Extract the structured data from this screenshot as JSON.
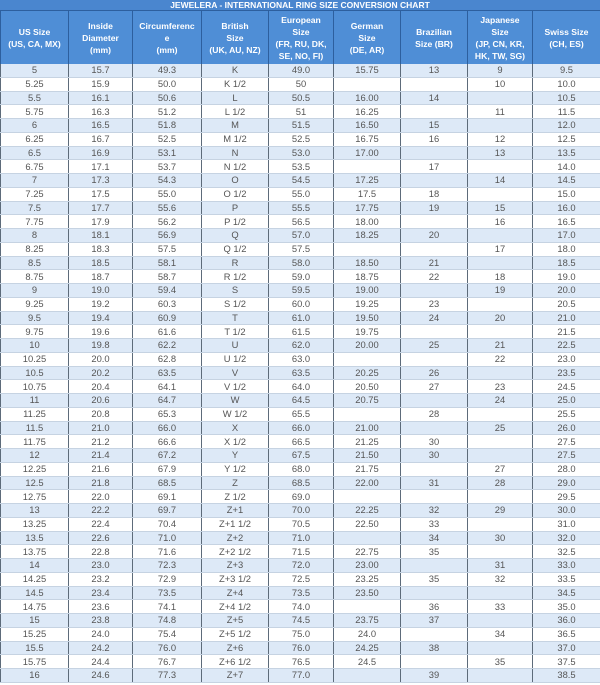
{
  "title": "JEWELERA - INTERNATIONAL RING SIZE CONVERSION CHART",
  "colors": {
    "header": "#4f8ed6",
    "row_alt": "#dde9f7",
    "text": "#555555"
  },
  "columns": [
    "US Size\n(US, CA, MX)",
    "Inside\nDiameter\n(mm)",
    "Circumferenc\ne\n(mm)",
    "British\nSize\n(UK, AU, NZ)",
    "European\nSize\n(FR, RU, DK,\nSE, NO, FI)",
    "German\nSize\n(DE, AR)",
    "Brazilian\nSize (BR)",
    "Japanese\nSize\n(JP, CN, KR,\nHK, TW, SG)",
    "Swiss Size\n(CH, ES)"
  ],
  "rows": [
    [
      "5",
      "15.7",
      "49.3",
      "K",
      "49.0",
      "15.75",
      "13",
      "9",
      "9.5"
    ],
    [
      "5.25",
      "15.9",
      "50.0",
      "K 1/2",
      "50",
      "",
      "",
      "10",
      "10.0"
    ],
    [
      "5.5",
      "16.1",
      "50.6",
      "L",
      "50.5",
      "16.00",
      "14",
      "",
      "10.5"
    ],
    [
      "5.75",
      "16.3",
      "51.2",
      "L 1/2",
      "51",
      "16.25",
      "",
      "11",
      "11.5"
    ],
    [
      "6",
      "16.5",
      "51.8",
      "M",
      "51.5",
      "16.50",
      "15",
      "",
      "12.0"
    ],
    [
      "6.25",
      "16.7",
      "52.5",
      "M 1/2",
      "52.5",
      "16.75",
      "16",
      "12",
      "12.5"
    ],
    [
      "6.5",
      "16.9",
      "53.1",
      "N",
      "53.0",
      "17.00",
      "",
      "13",
      "13.5"
    ],
    [
      "6.75",
      "17.1",
      "53.7",
      "N 1/2",
      "53.5",
      "",
      "17",
      "",
      "14.0"
    ],
    [
      "7",
      "17.3",
      "54.3",
      "O",
      "54.5",
      "17.25",
      "",
      "14",
      "14.5"
    ],
    [
      "7.25",
      "17.5",
      "55.0",
      "O 1/2",
      "55.0",
      "17.5",
      "18",
      "",
      "15.0"
    ],
    [
      "7.5",
      "17.7",
      "55.6",
      "P",
      "55.5",
      "17.75",
      "19",
      "15",
      "16.0"
    ],
    [
      "7.75",
      "17.9",
      "56.2",
      "P 1/2",
      "56.5",
      "18.00",
      "",
      "16",
      "16.5"
    ],
    [
      "8",
      "18.1",
      "56.9",
      "Q",
      "57.0",
      "18.25",
      "20",
      "",
      "17.0"
    ],
    [
      "8.25",
      "18.3",
      "57.5",
      "Q 1/2",
      "57.5",
      "",
      "",
      "17",
      "18.0"
    ],
    [
      "8.5",
      "18.5",
      "58.1",
      "R",
      "58.0",
      "18.50",
      "21",
      "",
      "18.5"
    ],
    [
      "8.75",
      "18.7",
      "58.7",
      "R 1/2",
      "59.0",
      "18.75",
      "22",
      "18",
      "19.0"
    ],
    [
      "9",
      "19.0",
      "59.4",
      "S",
      "59.5",
      "19.00",
      "",
      "19",
      "20.0"
    ],
    [
      "9.25",
      "19.2",
      "60.3",
      "S 1/2",
      "60.0",
      "19.25",
      "23",
      "",
      "20.5"
    ],
    [
      "9.5",
      "19.4",
      "60.9",
      "T",
      "61.0",
      "19.50",
      "24",
      "20",
      "21.0"
    ],
    [
      "9.75",
      "19.6",
      "61.6",
      "T 1/2",
      "61.5",
      "19.75",
      "",
      "",
      "21.5"
    ],
    [
      "10",
      "19.8",
      "62.2",
      "U",
      "62.0",
      "20.00",
      "25",
      "21",
      "22.5"
    ],
    [
      "10.25",
      "20.0",
      "62.8",
      "U 1/2",
      "63.0",
      "",
      "",
      "22",
      "23.0"
    ],
    [
      "10.5",
      "20.2",
      "63.5",
      "V",
      "63.5",
      "20.25",
      "26",
      "",
      "23.5"
    ],
    [
      "10.75",
      "20.4",
      "64.1",
      "V 1/2",
      "64.0",
      "20.50",
      "27",
      "23",
      "24.5"
    ],
    [
      "11",
      "20.6",
      "64.7",
      "W",
      "64.5",
      "20.75",
      "",
      "24",
      "25.0"
    ],
    [
      "11.25",
      "20.8",
      "65.3",
      "W 1/2",
      "65.5",
      "",
      "28",
      "",
      "25.5"
    ],
    [
      "11.5",
      "21.0",
      "66.0",
      "X",
      "66.0",
      "21.00",
      "",
      "25",
      "26.0"
    ],
    [
      "11.75",
      "21.2",
      "66.6",
      "X 1/2",
      "66.5",
      "21.25",
      "30",
      "",
      "27.5"
    ],
    [
      "12",
      "21.4",
      "67.2",
      "Y",
      "67.5",
      "21.50",
      "30",
      "",
      "27.5"
    ],
    [
      "12.25",
      "21.6",
      "67.9",
      "Y 1/2",
      "68.0",
      "21.75",
      "",
      "27",
      "28.0"
    ],
    [
      "12.5",
      "21.8",
      "68.5",
      "Z",
      "68.5",
      "22.00",
      "31",
      "28",
      "29.0"
    ],
    [
      "12.75",
      "22.0",
      "69.1",
      "Z 1/2",
      "69.0",
      "",
      "",
      "",
      "29.5"
    ],
    [
      "13",
      "22.2",
      "69.7",
      "Z+1",
      "70.0",
      "22.25",
      "32",
      "29",
      "30.0"
    ],
    [
      "13.25",
      "22.4",
      "70.4",
      "Z+1 1/2",
      "70.5",
      "22.50",
      "33",
      "",
      "31.0"
    ],
    [
      "13.5",
      "22.6",
      "71.0",
      "Z+2",
      "71.0",
      "",
      "34",
      "30",
      "32.0"
    ],
    [
      "13.75",
      "22.8",
      "71.6",
      "Z+2 1/2",
      "71.5",
      "22.75",
      "35",
      "",
      "32.5"
    ],
    [
      "14",
      "23.0",
      "72.3",
      "Z+3",
      "72.0",
      "23.00",
      "",
      "31",
      "33.0"
    ],
    [
      "14.25",
      "23.2",
      "72.9",
      "Z+3 1/2",
      "72.5",
      "23.25",
      "35",
      "32",
      "33.5"
    ],
    [
      "14.5",
      "23.4",
      "73.5",
      "Z+4",
      "73.5",
      "23.50",
      "",
      "",
      "34.5"
    ],
    [
      "14.75",
      "23.6",
      "74.1",
      "Z+4 1/2",
      "74.0",
      "",
      "36",
      "33",
      "35.0"
    ],
    [
      "15",
      "23.8",
      "74.8",
      "Z+5",
      "74.5",
      "23.75",
      "37",
      "",
      "36.0"
    ],
    [
      "15.25",
      "24.0",
      "75.4",
      "Z+5 1/2",
      "75.0",
      "24.0",
      "",
      "34",
      "36.5"
    ],
    [
      "15.5",
      "24.2",
      "76.0",
      "Z+6",
      "76.0",
      "24.25",
      "38",
      "",
      "37.0"
    ],
    [
      "15.75",
      "24.4",
      "76.7",
      "Z+6 1/2",
      "76.5",
      "24.5",
      "",
      "35",
      "37.5"
    ],
    [
      "16",
      "24.6",
      "77.3",
      "Z+7",
      "77.0",
      "",
      "39",
      "",
      "38.5"
    ]
  ]
}
